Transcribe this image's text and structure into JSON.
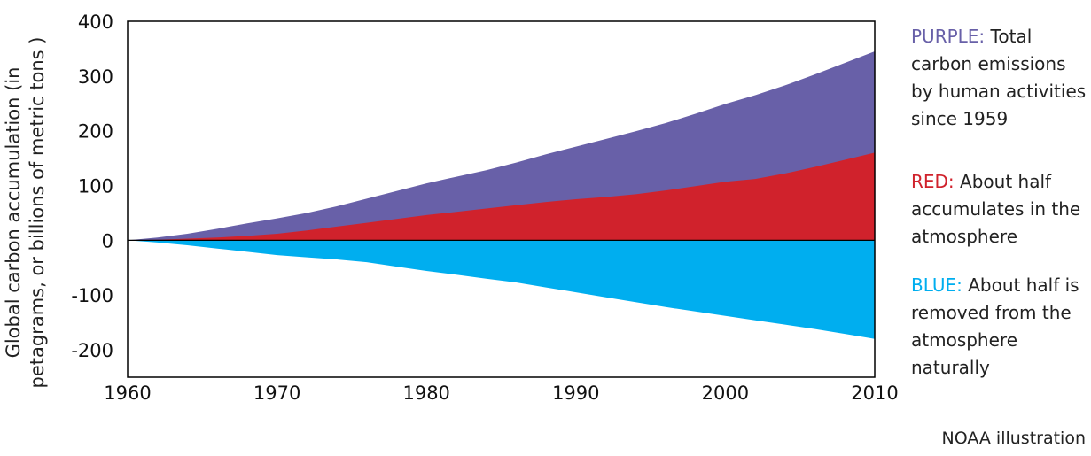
{
  "chart_data": {
    "type": "area",
    "ylabel_line1": "Global carbon accumulation (in",
    "ylabel_line2": "petagrams, or billions of metric tons )",
    "xlabel": "",
    "title": "",
    "xlim": [
      1960,
      2010
    ],
    "ylim": [
      -250,
      400
    ],
    "xticks": [
      1960,
      1970,
      1980,
      1990,
      2000,
      2010
    ],
    "yticks": [
      400,
      300,
      200,
      100,
      0,
      -100,
      -200
    ],
    "x": [
      1960,
      1962,
      1964,
      1966,
      1968,
      1970,
      1972,
      1974,
      1976,
      1978,
      1980,
      1982,
      1984,
      1986,
      1988,
      1990,
      1992,
      1994,
      1996,
      1998,
      2000,
      2002,
      2004,
      2006,
      2008,
      2010
    ],
    "series": [
      {
        "name": "PURPLE",
        "color": "#6860a8",
        "values": [
          0,
          5,
          12,
          21,
          31,
          40,
          50,
          62,
          76,
          90,
          104,
          116,
          128,
          142,
          157,
          171,
          185,
          199,
          214,
          231,
          249,
          265,
          283,
          303,
          324,
          345
        ]
      },
      {
        "name": "RED",
        "color": "#d0222c",
        "values": [
          0,
          1,
          3,
          5,
          8,
          12,
          18,
          25,
          32,
          39,
          46,
          52,
          58,
          64,
          70,
          75,
          79,
          84,
          91,
          99,
          107,
          112,
          122,
          134,
          147,
          160
        ]
      },
      {
        "name": "BLUE",
        "color": "#00aeef",
        "values": [
          0,
          -4,
          -9,
          -15,
          -21,
          -27,
          -31,
          -35,
          -40,
          -48,
          -56,
          -63,
          -70,
          -77,
          -86,
          -95,
          -104,
          -113,
          -122,
          -130,
          -138,
          -146,
          -154,
          -162,
          -171,
          -180
        ]
      }
    ]
  },
  "legend": {
    "purple": {
      "key": "PURPLE:",
      "text": " Total carbon emissions by human activities since 1959",
      "color": "#6860a8"
    },
    "red": {
      "key": "RED:",
      "text": " About half accumulates in the atmosphere",
      "color": "#d0222c"
    },
    "blue": {
      "key": "BLUE:",
      "text": " About half is removed from the atmosphere naturally",
      "color": "#00aeef"
    }
  },
  "credit": "NOAA illustration"
}
